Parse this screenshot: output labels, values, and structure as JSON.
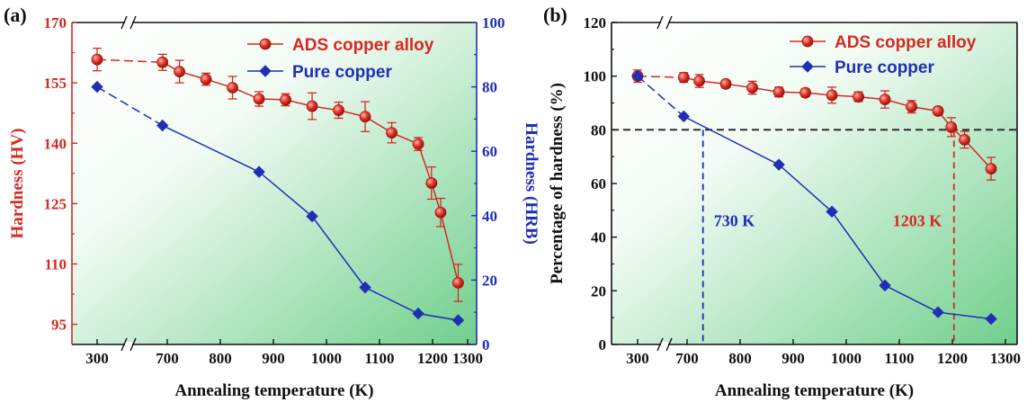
{
  "colors": {
    "ads": "#d42a22",
    "pure": "#1f2fb5",
    "axis": "#111111",
    "ref": "#222222",
    "bg_top": "#ffffff",
    "bg_bottom": "#6fcf8c"
  },
  "chart_data": [
    {
      "panel_label": "(a)",
      "type": "line",
      "xlabel": "Annealing temperature (K)",
      "ylabel": "Hardness (HV)",
      "ylabel_right": "Hardness (HRB)",
      "x_ticks": [
        "300",
        "700",
        "800",
        "900",
        "1000",
        "1100",
        "1200",
        "1300"
      ],
      "ylim": [
        90,
        170
      ],
      "y_ticks": [
        "95",
        "110",
        "125",
        "140",
        "155",
        "170"
      ],
      "ylim_right": [
        0,
        100
      ],
      "y_ticks_right": [
        "0",
        "20",
        "40",
        "60",
        "80",
        "100"
      ],
      "x_break": true,
      "legend_position": "top-right",
      "series": [
        {
          "name": "ADS copper alloy",
          "axis": "left",
          "marker": "circle",
          "x": [
            300,
            673,
            723,
            773,
            823,
            873,
            923,
            973,
            1023,
            1073,
            1123,
            1173,
            1198,
            1223,
            1273
          ],
          "y": [
            160.8,
            160.1,
            157.8,
            155.9,
            153.8,
            151.0,
            150.8,
            149.2,
            148.2,
            146.6,
            142.6,
            139.8,
            130.1,
            122.8,
            105.3
          ],
          "err": [
            2.8,
            2.0,
            2.8,
            1.5,
            2.8,
            1.8,
            1.5,
            3.3,
            2.0,
            3.7,
            2.5,
            1.6,
            4.0,
            3.5,
            4.6
          ]
        },
        {
          "name": "Pure copper",
          "axis": "right",
          "marker": "diamond",
          "x": [
            300,
            673,
            873,
            973,
            1073,
            1173,
            1273
          ],
          "y": [
            80,
            68,
            53.6,
            39.8,
            17.7,
            9.6,
            7.5
          ]
        }
      ]
    },
    {
      "panel_label": "(b)",
      "type": "line",
      "xlabel": "Annealing temperature (K)",
      "ylabel": "Percentage of hardness (%)",
      "x_ticks": [
        "300",
        "700",
        "800",
        "900",
        "1000",
        "1100",
        "1200",
        "1300"
      ],
      "ylim": [
        0,
        120
      ],
      "y_ticks": [
        "0",
        "20",
        "40",
        "60",
        "80",
        "100",
        "120"
      ],
      "x_break": true,
      "legend_position": "top-right",
      "reference_line_y": 80,
      "annotations": [
        {
          "text": "730 K",
          "x": 730,
          "color": "pure"
        },
        {
          "text": "1203 K",
          "x": 1203,
          "color": "ads"
        }
      ],
      "series": [
        {
          "name": "ADS copper alloy",
          "marker": "circle",
          "x": [
            300,
            673,
            723,
            773,
            823,
            873,
            923,
            973,
            1023,
            1073,
            1123,
            1173,
            1198,
            1223,
            1273
          ],
          "y": [
            100,
            99.5,
            98.2,
            97.1,
            95.7,
            94.1,
            93.8,
            92.9,
            92.3,
            91.3,
            88.6,
            87.0,
            81.0,
            76.3,
            65.5
          ],
          "err": [
            2.3,
            1.8,
            2.4,
            1.3,
            2.4,
            1.8,
            1.4,
            3.0,
            1.8,
            3.2,
            2.3,
            1.4,
            3.5,
            3.1,
            4.2
          ]
        },
        {
          "name": "Pure copper",
          "marker": "diamond",
          "x": [
            300,
            673,
            873,
            973,
            1073,
            1173,
            1273
          ],
          "y": [
            100,
            85,
            67,
            49.5,
            22,
            12,
            9.5
          ]
        }
      ]
    }
  ]
}
